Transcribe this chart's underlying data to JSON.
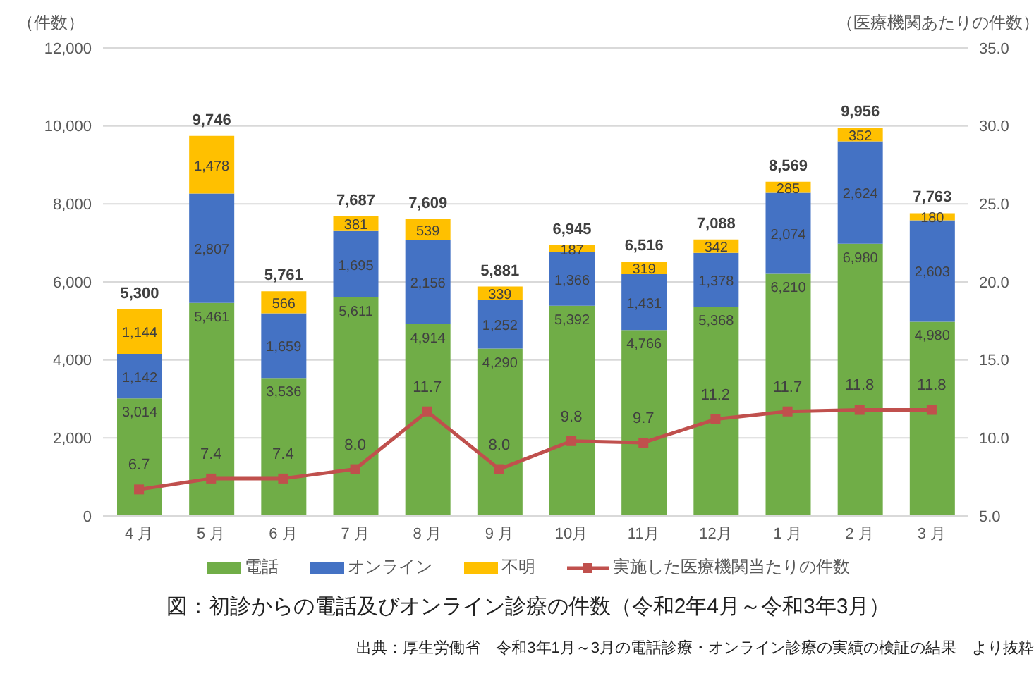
{
  "chart_data": {
    "type": "bar",
    "stacked": true,
    "title": "図：初診からの電話及びオンライン診療の件数（令和2年4月～令和3年3月）",
    "ylabel": "（件数）",
    "y2label": "（医療機関あたりの件数）",
    "annotations": [
      "出典：厚生労働省　令和3年1月～3月の電話診療・オンライン診療の実績の検証の結果　より抜粋"
    ],
    "categories": [
      "4 月",
      "5 月",
      "6 月",
      "7 月",
      "8 月",
      "9 月",
      "10月",
      "11月",
      "12月",
      "1 月",
      "2 月",
      "3 月"
    ],
    "series": [
      {
        "name": "電話",
        "color": "#70ad47",
        "values": [
          3014,
          5461,
          3536,
          5611,
          4914,
          4290,
          5392,
          4766,
          5368,
          6210,
          6980,
          4980
        ],
        "value_labels": [
          "3,014",
          "5,461",
          "3,536",
          "5,611",
          "4,914",
          "4,290",
          "5,392",
          "4,766",
          "5,368",
          "6,210",
          "6,980",
          "4,980"
        ]
      },
      {
        "name": "オンライン",
        "color": "#4472c4",
        "values": [
          1142,
          2807,
          1659,
          1695,
          2156,
          1252,
          1366,
          1431,
          1378,
          2074,
          2624,
          2603
        ],
        "value_labels": [
          "1,142",
          "2,807",
          "1,659",
          "1,695",
          "2,156",
          "1,252",
          "1,366",
          "1,431",
          "1,378",
          "2,074",
          "2,624",
          "2,603"
        ]
      },
      {
        "name": "不明",
        "color": "#ffc000",
        "values": [
          1144,
          1478,
          566,
          381,
          539,
          339,
          187,
          319,
          342,
          285,
          352,
          180
        ],
        "value_labels": [
          "1,144",
          "1,478",
          "566",
          "381",
          "539",
          "339",
          "187",
          "319",
          "342",
          "285",
          "352",
          "180"
        ]
      },
      {
        "name": "実施した医療機関当たりの件数",
        "type": "line",
        "axis": "y2",
        "color": "#c0504d",
        "values": [
          6.7,
          7.4,
          7.4,
          8.0,
          11.7,
          8.0,
          9.8,
          9.7,
          11.2,
          11.7,
          11.8,
          11.8
        ],
        "value_labels": [
          "6.7",
          "7.4",
          "7.4",
          "8.0",
          "11.7",
          "8.0",
          "9.8",
          "9.7",
          "11.2",
          "11.7",
          "11.8",
          "11.8"
        ]
      }
    ],
    "totals": [
      "5,300",
      "9,746",
      "5,761",
      "7,687",
      "7,609",
      "5,881",
      "6,945",
      "6,516",
      "7,088",
      "8,569",
      "9,956",
      "7,763"
    ],
    "ylim": [
      0,
      12000
    ],
    "yticks": [
      0,
      {
        "value": 2000,
        "label": "2,000"
      },
      {
        "value": 4000,
        "label": "4,000"
      },
      {
        "value": 6000,
        "label": "6,000"
      },
      {
        "value": 8000,
        "label": "8,000"
      },
      {
        "value": 10000,
        "label": "10,000"
      },
      {
        "value": 12000,
        "label": "12,000"
      }
    ],
    "y2lim": [
      5,
      35
    ],
    "y2ticks": [
      {
        "value": 5,
        "label": "5.0"
      },
      {
        "value": 10,
        "label": "10.0"
      },
      {
        "value": 15,
        "label": "15.0"
      },
      {
        "value": 20,
        "label": "20.0"
      },
      {
        "value": 25,
        "label": "25.0"
      },
      {
        "value": 30,
        "label": "30.0"
      },
      {
        "value": 35,
        "label": "35.0"
      }
    ],
    "grid": "y",
    "legend": "bottom",
    "marker": "square",
    "line_style": "solid"
  }
}
